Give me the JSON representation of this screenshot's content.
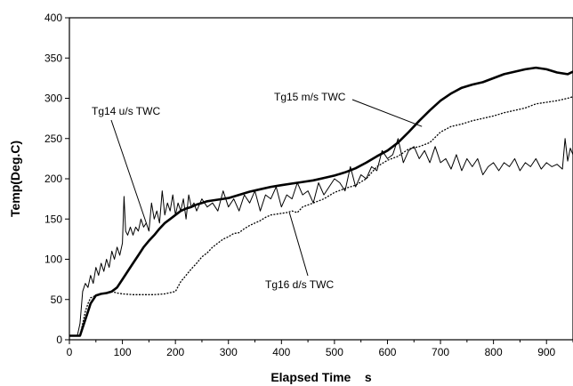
{
  "chart_data": {
    "type": "line",
    "xlabel": "Elapsed Time    s",
    "ylabel": "Temp(Deg.C)",
    "xlim": [
      0,
      950
    ],
    "ylim": [
      0,
      400
    ],
    "x_ticks": [
      "0",
      "100",
      "200",
      "300",
      "400",
      "500",
      "600",
      "700",
      "800",
      "900"
    ],
    "y_ticks": [
      "0",
      "50",
      "100",
      "150",
      "200",
      "250",
      "300",
      "350",
      "400"
    ],
    "grid": false,
    "legend": "none",
    "series": [
      {
        "name": "Tg14 u/s TWC",
        "style": "thin-noisy",
        "x": [
          0,
          15,
          20,
          25,
          30,
          35,
          40,
          45,
          50,
          55,
          60,
          65,
          70,
          75,
          80,
          85,
          90,
          95,
          100,
          103,
          106,
          110,
          115,
          120,
          125,
          130,
          135,
          140,
          145,
          150,
          155,
          160,
          165,
          170,
          175,
          180,
          185,
          190,
          195,
          200,
          205,
          210,
          215,
          220,
          225,
          230,
          235,
          240,
          250,
          260,
          270,
          280,
          290,
          300,
          310,
          320,
          330,
          340,
          350,
          360,
          370,
          380,
          390,
          400,
          410,
          420,
          430,
          440,
          450,
          460,
          470,
          480,
          490,
          500,
          510,
          520,
          530,
          540,
          550,
          560,
          570,
          580,
          590,
          600,
          610,
          620,
          630,
          640,
          650,
          660,
          670,
          680,
          690,
          700,
          710,
          720,
          730,
          740,
          750,
          760,
          770,
          780,
          790,
          800,
          810,
          820,
          830,
          840,
          850,
          860,
          870,
          880,
          890,
          900,
          910,
          920,
          930,
          935,
          940,
          945,
          950
        ],
        "values": [
          5,
          5,
          20,
          60,
          70,
          65,
          80,
          70,
          90,
          80,
          95,
          85,
          100,
          90,
          110,
          100,
          115,
          105,
          120,
          178,
          135,
          130,
          140,
          130,
          140,
          135,
          150,
          140,
          145,
          135,
          170,
          150,
          160,
          145,
          185,
          155,
          170,
          160,
          180,
          155,
          170,
          160,
          175,
          150,
          180,
          165,
          170,
          160,
          175,
          165,
          170,
          160,
          185,
          165,
          175,
          160,
          180,
          170,
          185,
          160,
          180,
          175,
          190,
          165,
          180,
          175,
          195,
          180,
          185,
          170,
          195,
          180,
          190,
          200,
          195,
          185,
          215,
          190,
          205,
          200,
          215,
          210,
          235,
          225,
          230,
          250,
          220,
          235,
          240,
          225,
          235,
          220,
          240,
          220,
          225,
          212,
          230,
          210,
          225,
          215,
          225,
          205,
          215,
          220,
          210,
          220,
          215,
          225,
          210,
          220,
          215,
          225,
          212,
          220,
          215,
          218,
          212,
          250,
          222,
          238,
          230
        ]
      },
      {
        "name": "Tg15 m/s TWC",
        "style": "thick",
        "x": [
          0,
          20,
          25,
          30,
          35,
          40,
          50,
          60,
          70,
          80,
          90,
          100,
          110,
          120,
          130,
          140,
          150,
          160,
          170,
          180,
          190,
          200,
          210,
          220,
          230,
          240,
          250,
          260,
          270,
          280,
          290,
          300,
          320,
          340,
          360,
          380,
          400,
          420,
          440,
          460,
          480,
          500,
          520,
          540,
          560,
          580,
          600,
          620,
          640,
          660,
          680,
          700,
          720,
          740,
          760,
          780,
          800,
          820,
          840,
          860,
          880,
          900,
          920,
          940,
          950
        ],
        "values": [
          5,
          5,
          15,
          25,
          35,
          45,
          55,
          57,
          58,
          60,
          65,
          75,
          85,
          95,
          105,
          115,
          123,
          130,
          138,
          145,
          150,
          155,
          160,
          163,
          165,
          168,
          170,
          172,
          173,
          174,
          175,
          176,
          180,
          184,
          187,
          190,
          192,
          194,
          196,
          198,
          201,
          204,
          208,
          213,
          220,
          228,
          235,
          245,
          258,
          272,
          285,
          297,
          306,
          313,
          317,
          320,
          325,
          330,
          333,
          336,
          338,
          336,
          332,
          330,
          333
        ]
      },
      {
        "name": "Tg16 d/s TWC",
        "style": "dotted",
        "x": [
          0,
          20,
          25,
          30,
          35,
          40,
          50,
          60,
          70,
          80,
          90,
          100,
          120,
          140,
          160,
          180,
          200,
          210,
          220,
          230,
          240,
          250,
          260,
          270,
          280,
          290,
          300,
          310,
          320,
          330,
          340,
          350,
          360,
          370,
          380,
          390,
          400,
          410,
          420,
          430,
          440,
          460,
          480,
          500,
          520,
          540,
          560,
          580,
          600,
          620,
          640,
          660,
          680,
          700,
          720,
          740,
          760,
          780,
          800,
          820,
          840,
          860,
          880,
          900,
          920,
          940,
          950
        ],
        "values": [
          5,
          5,
          20,
          35,
          45,
          52,
          55,
          57,
          58,
          60,
          58,
          57,
          56,
          56,
          56,
          57,
          60,
          72,
          80,
          88,
          95,
          103,
          108,
          115,
          120,
          125,
          128,
          132,
          133,
          138,
          142,
          145,
          148,
          152,
          155,
          156,
          157,
          158,
          160,
          158,
          165,
          170,
          175,
          183,
          188,
          192,
          200,
          215,
          223,
          228,
          237,
          240,
          245,
          258,
          265,
          268,
          272,
          275,
          278,
          282,
          285,
          288,
          293,
          295,
          297,
          300,
          302
        ]
      }
    ],
    "annotations": [
      {
        "text": "Tg14 u/s TWC",
        "target_series": "Tg14 u/s TWC",
        "target_x": 145,
        "target_y": 145
      },
      {
        "text": "Tg15 m/s TWC",
        "target_series": "Tg15 m/s TWC",
        "target_x": 665,
        "target_y": 265
      },
      {
        "text": "Tg16 d/s TWC",
        "target_series": "Tg16 d/s TWC",
        "target_x": 415,
        "target_y": 158
      }
    ]
  }
}
